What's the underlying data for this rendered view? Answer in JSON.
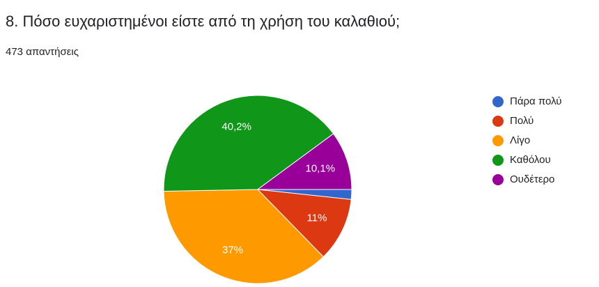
{
  "chart_data": {
    "type": "pie",
    "title": "8. Πόσο ευχαριστημένοι είστε από τη χρήση του καλαθιού;",
    "subtitle": "473 απαντήσεις",
    "categories": [
      "Πάρα πολύ",
      "Πολύ",
      "Λίγο",
      "Καθόλου",
      "Ουδέτερο"
    ],
    "values": [
      1.7,
      11,
      37,
      40.2,
      10.1
    ],
    "value_labels": [
      null,
      "11%",
      "37%",
      "40,2%",
      "10,1%"
    ],
    "colors": [
      "#3366cc",
      "#dc3912",
      "#ff9900",
      "#109618",
      "#990099"
    ],
    "legend": "right"
  }
}
